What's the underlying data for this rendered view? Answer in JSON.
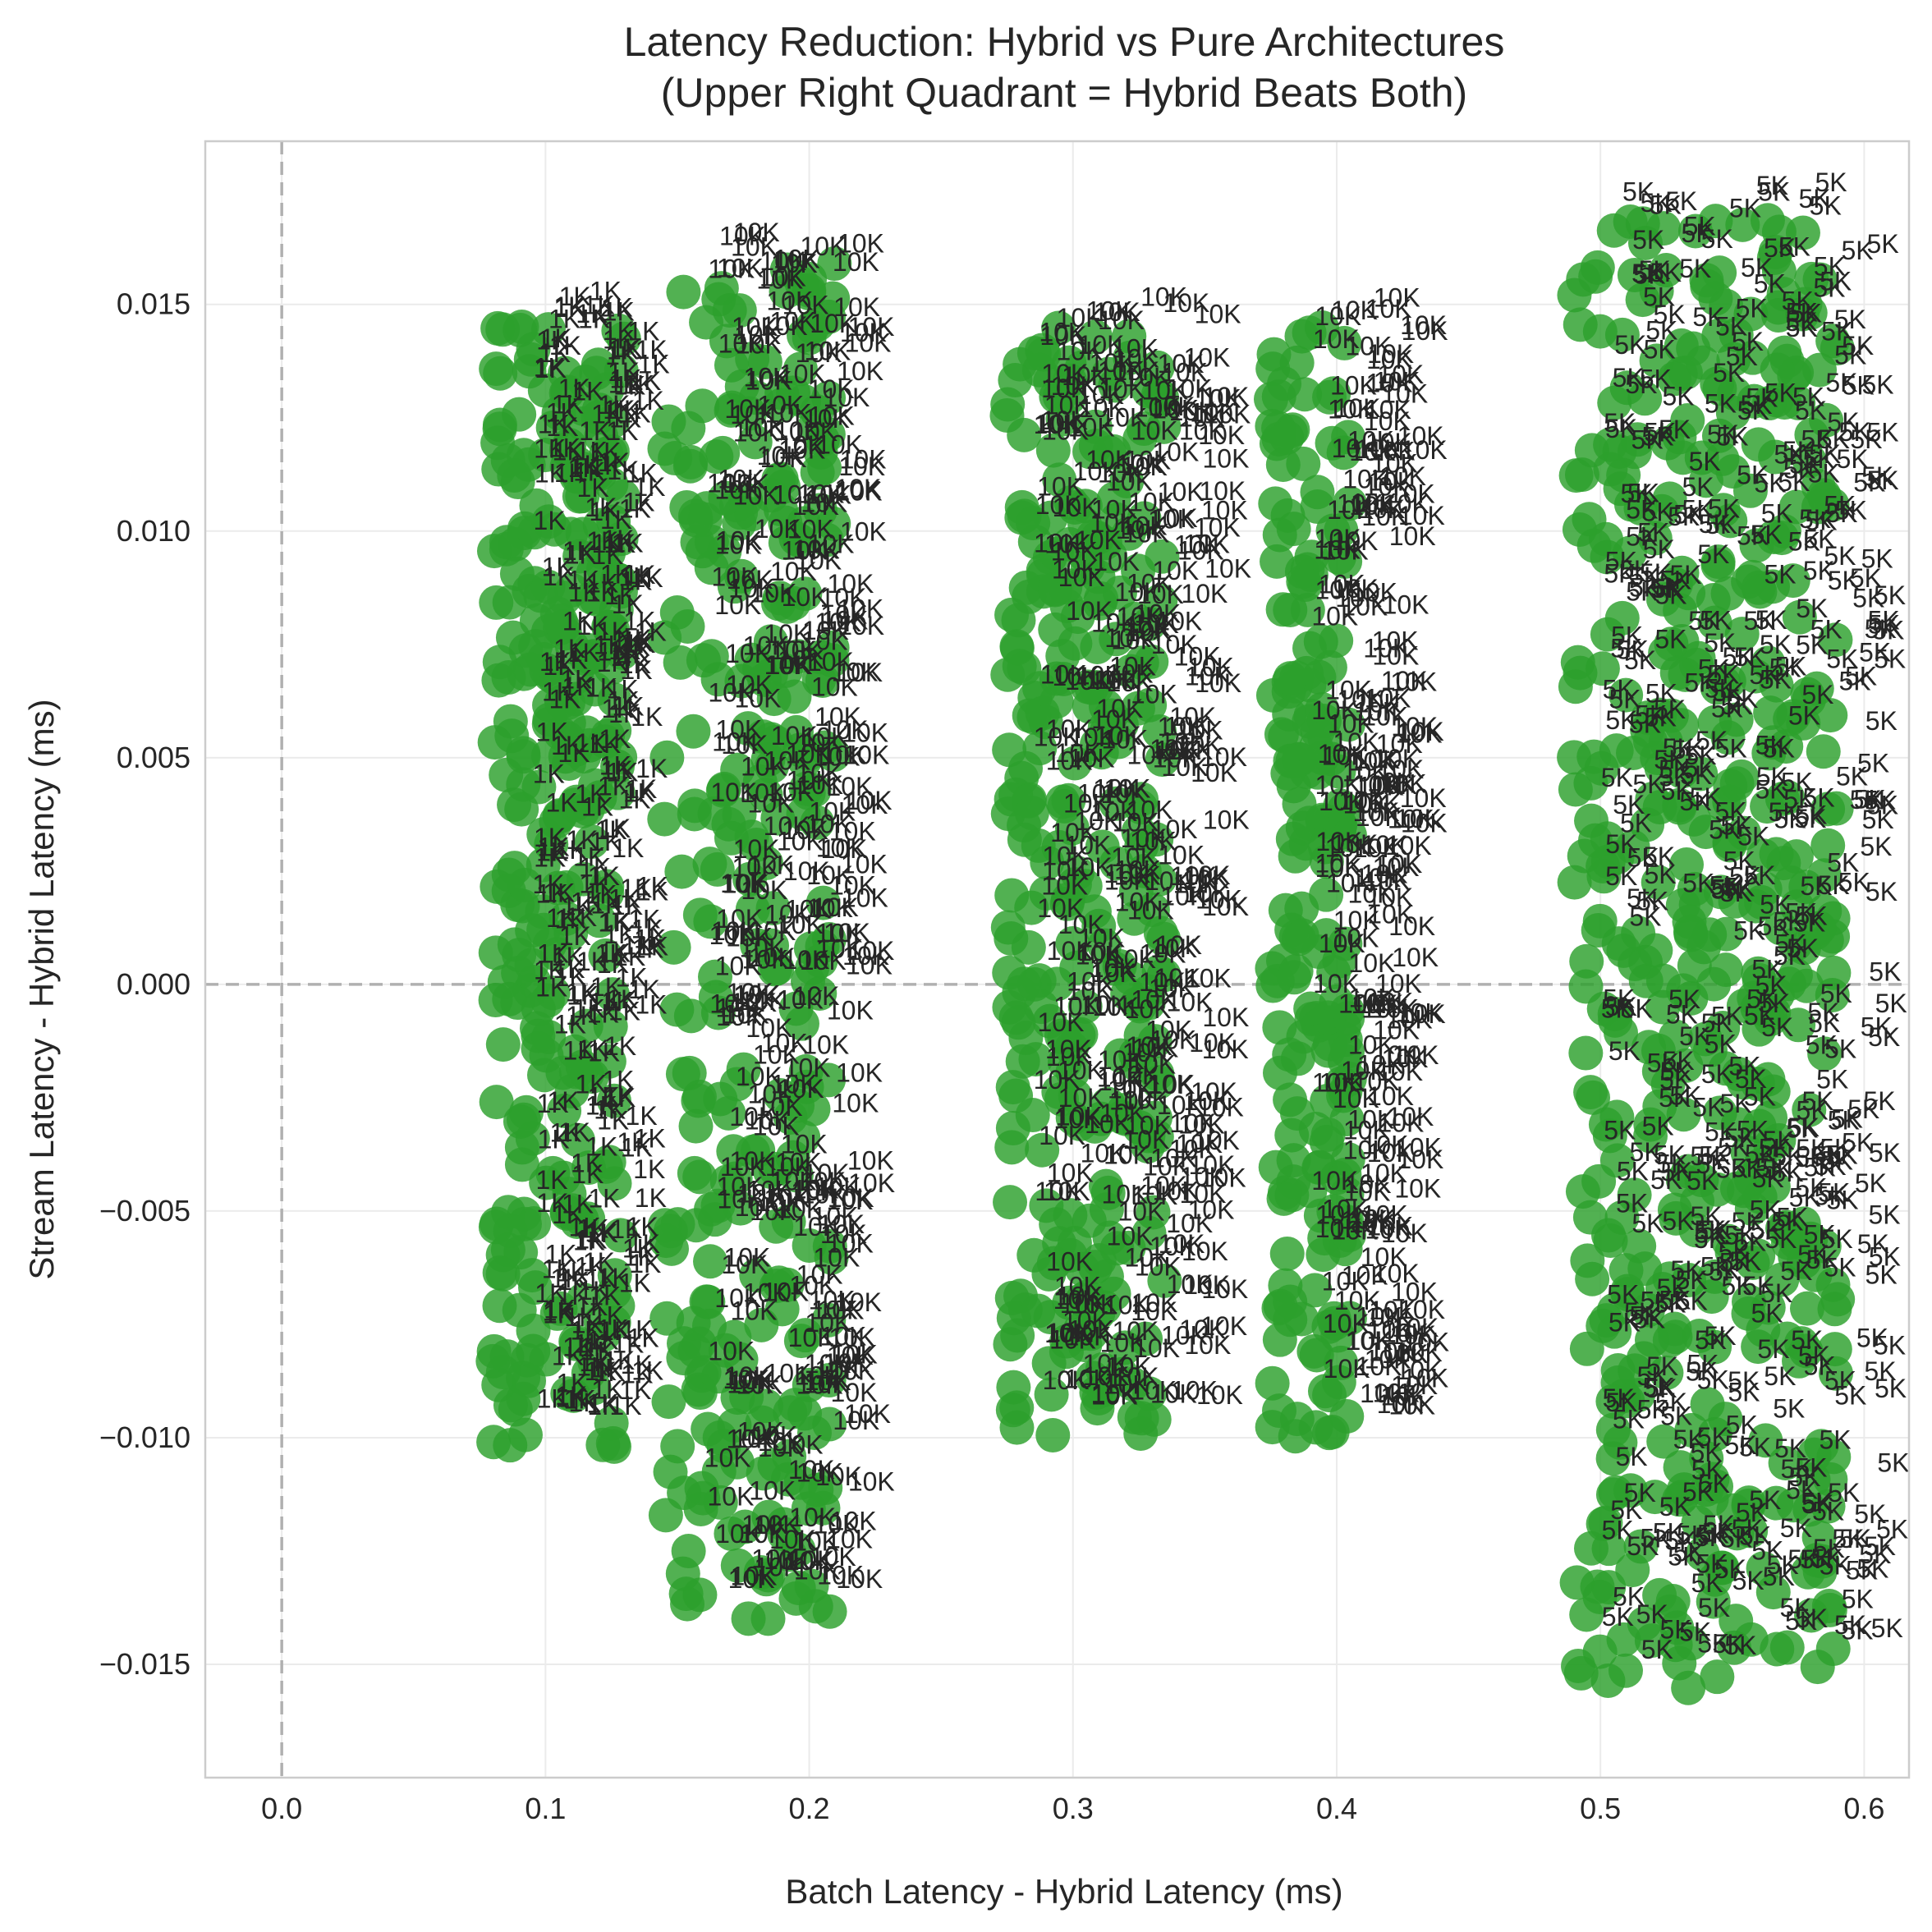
{
  "chart_data": {
    "type": "scatter",
    "title_line1": "Latency Reduction: Hybrid vs Pure Architectures",
    "title_line2": "(Upper Right Quadrant = Hybrid Beats Both)",
    "xlabel": "Batch Latency - Hybrid Latency (ms)",
    "ylabel": "Stream Latency - Hybrid Latency (ms)",
    "xlim": [
      -0.029,
      0.617
    ],
    "ylim": [
      -0.0175,
      0.0186
    ],
    "xticks": [
      0.0,
      0.1,
      0.2,
      0.3,
      0.4,
      0.5,
      0.6
    ],
    "xtick_labels": [
      "0.0",
      "0.1",
      "0.2",
      "0.3",
      "0.4",
      "0.5",
      "0.6"
    ],
    "yticks": [
      -0.015,
      -0.01,
      -0.005,
      0.0,
      0.005,
      0.01,
      0.015
    ],
    "ytick_labels": [
      "−0.015",
      "−0.010",
      "−0.005",
      "0.000",
      "0.005",
      "0.010",
      "0.015"
    ],
    "grid": true,
    "reference_lines": {
      "x": 0.0,
      "y": 0.0
    },
    "point_color": "#2ca02c",
    "label_color": "#262626",
    "clusters": [
      {
        "label": "1K",
        "x_range": [
          0.08,
          0.13
        ],
        "y_range": [
          -0.0102,
          0.0146
        ],
        "label_x_range": [
          0.095,
          0.135
        ],
        "label_y_range": [
          -0.0095,
          0.0152
        ],
        "count": 300
      },
      {
        "label": "10K",
        "x_range": [
          0.145,
          0.21
        ],
        "y_range": [
          -0.014,
          0.0159
        ],
        "label_x_range": [
          0.16,
          0.215
        ],
        "label_y_range": [
          -0.0135,
          0.0165
        ],
        "count": 300
      },
      {
        "label": "10K",
        "x_range": [
          0.275,
          0.335
        ],
        "y_range": [
          -0.01,
          0.0145
        ],
        "label_x_range": [
          0.285,
          0.35
        ],
        "label_y_range": [
          -0.0095,
          0.015
        ],
        "count": 300
      },
      {
        "label": "10K",
        "x_range": [
          0.375,
          0.405
        ],
        "y_range": [
          -0.01,
          0.0145
        ],
        "label_x_range": [
          0.39,
          0.425
        ],
        "label_y_range": [
          -0.0095,
          0.015
        ],
        "count": 200
      },
      {
        "label": "5K",
        "x_range": [
          0.49,
          0.59
        ],
        "y_range": [
          -0.0156,
          0.017
        ],
        "label_x_range": [
          0.5,
          0.605
        ],
        "label_y_range": [
          -0.015,
          0.0175
        ],
        "count": 500
      }
    ]
  }
}
